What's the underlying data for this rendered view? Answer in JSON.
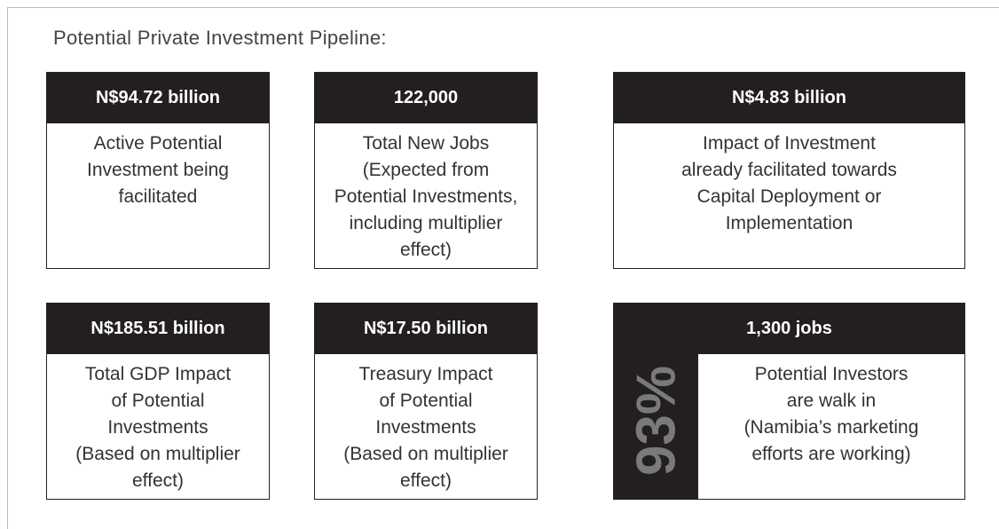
{
  "title": "Potential Private Investment Pipeline:",
  "cards": [
    {
      "header": "N$94.72 billion",
      "body": [
        "Active Potential",
        "Investment being",
        "facilitated"
      ]
    },
    {
      "header": "122,000",
      "body": [
        "Total New Jobs",
        "(Expected from",
        "Potential Investments,",
        "including multiplier",
        "effect)"
      ]
    },
    {
      "header": "N$4.83 billion",
      "body": [
        "Impact of Investment",
        "already facilitated towards",
        "Capital Deployment or",
        "Implementation"
      ]
    },
    {
      "header": "N$185.51 billion",
      "body": [
        "Total GDP Impact",
        "of Potential",
        "Investments",
        "(Based on multiplier",
        "effect)"
      ]
    },
    {
      "header": "N$17.50 billion",
      "body": [
        "Treasury Impact",
        "of Potential",
        "Investments",
        "(Based on multiplier",
        "effect)"
      ]
    },
    {
      "header": "1,300 jobs",
      "side": "93%",
      "body": [
        "Potential Investors",
        "are walk in",
        "(Namibia’s marketing",
        "efforts are working)"
      ]
    }
  ]
}
